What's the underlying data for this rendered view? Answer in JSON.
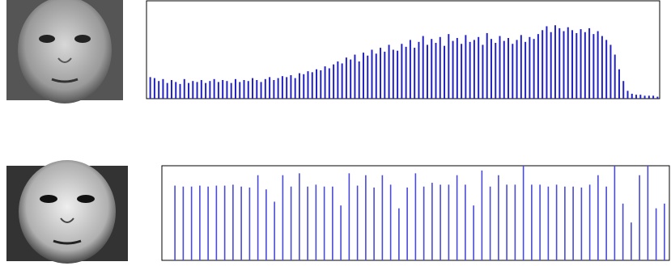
{
  "chart_data": [
    {
      "type": "bar",
      "color": "#2222c4",
      "ylim": [
        0,
        100
      ],
      "values": [
        22,
        21,
        18,
        20,
        16,
        19,
        17,
        15,
        20,
        16,
        18,
        17,
        19,
        16,
        18,
        20,
        17,
        19,
        18,
        16,
        20,
        17,
        19,
        18,
        21,
        19,
        17,
        20,
        22,
        19,
        21,
        23,
        22,
        24,
        21,
        26,
        25,
        28,
        27,
        30,
        29,
        33,
        31,
        35,
        38,
        36,
        42,
        40,
        45,
        38,
        47,
        44,
        50,
        46,
        52,
        48,
        55,
        50,
        49,
        56,
        53,
        60,
        52,
        58,
        64,
        55,
        61,
        57,
        63,
        54,
        66,
        59,
        62,
        56,
        65,
        58,
        60,
        63,
        55,
        67,
        61,
        57,
        64,
        59,
        62,
        56,
        60,
        65,
        58,
        63,
        61,
        66,
        70,
        74,
        68,
        75,
        72,
        69,
        73,
        70,
        67,
        71,
        68,
        72,
        66,
        69,
        64,
        60,
        55,
        45,
        30,
        18,
        8,
        5,
        4,
        4,
        3,
        3,
        3,
        2
      ]
    },
    {
      "type": "bar",
      "color": "#4a4ad8",
      "ylim": [
        0,
        100
      ],
      "values": [
        79,
        78,
        78,
        79,
        78,
        79,
        79,
        80,
        78,
        77,
        90,
        75,
        62,
        90,
        78,
        92,
        78,
        80,
        78,
        78,
        58,
        92,
        79,
        90,
        77,
        90,
        80,
        55,
        77,
        92,
        78,
        82,
        80,
        80,
        90,
        80,
        58,
        95,
        78,
        90,
        80,
        80,
        100,
        80,
        80,
        78,
        80,
        78,
        78,
        77,
        80,
        90,
        78,
        100,
        60,
        40,
        90,
        100,
        55,
        60
      ]
    }
  ]
}
